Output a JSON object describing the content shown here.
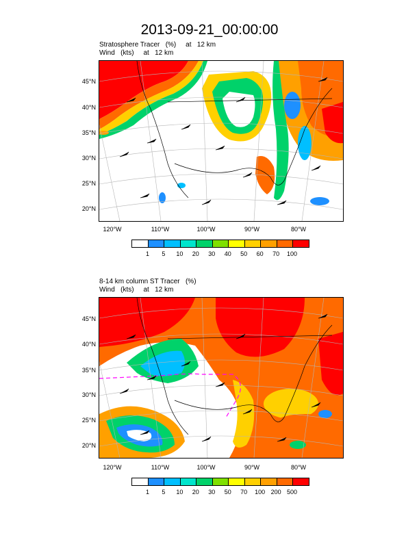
{
  "title": "2013-09-21_00:00:00",
  "panels": [
    {
      "subtitle1": "Stratosphere Tracer   (%)     at   12 km",
      "subtitle2": "Wind   (kts)     at   12 km",
      "lat_labels": [
        "45°N",
        "40°N",
        "35°N",
        "30°N",
        "25°N",
        "20°N"
      ],
      "lon_labels": [
        "120°W",
        "110°W",
        "100°W",
        "90°W",
        "80°W"
      ],
      "colorbar_labels": [
        "1",
        "5",
        "10",
        "20",
        "30",
        "40",
        "50",
        "60",
        "70",
        "100"
      ],
      "colors": [
        "#ffffff",
        "#1e90ff",
        "#00bfff",
        "#00e5cc",
        "#00d26a",
        "#7fe000",
        "#ffff00",
        "#ffd000",
        "#ffa000",
        "#ff6a00",
        "#ff0000"
      ]
    },
    {
      "subtitle1": "8-14 km column ST Tracer   (%)",
      "subtitle2": "Wind   (kts)     at   12 km",
      "lat_labels": [
        "45°N",
        "40°N",
        "35°N",
        "30°N",
        "25°N",
        "20°N"
      ],
      "lon_labels": [
        "120°W",
        "110°W",
        "100°W",
        "90°W",
        "80°W"
      ],
      "colorbar_labels": [
        "1",
        "5",
        "10",
        "20",
        "30",
        "50",
        "70",
        "100",
        "200",
        "500"
      ],
      "colors": [
        "#ffffff",
        "#1e90ff",
        "#00bfff",
        "#00e5cc",
        "#00d26a",
        "#7fe000",
        "#ffff00",
        "#ffd000",
        "#ffa000",
        "#ff6a00",
        "#ff0000"
      ]
    }
  ]
}
